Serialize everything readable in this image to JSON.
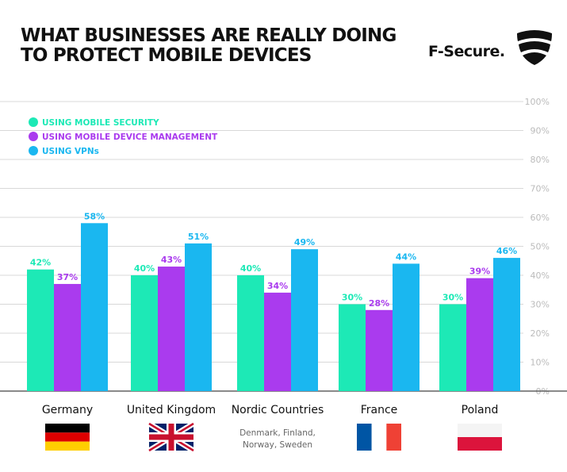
{
  "header": {
    "title_line1": "WHAT BUSINESSES ARE REALLY DOING",
    "title_line2": "TO PROTECT MOBILE DEVICES",
    "logo_text": "F-Secure."
  },
  "colors": {
    "mobile_security": "#1de9b6",
    "mdm": "#aa3bee",
    "vpn": "#1ab7f0",
    "grid": "#d8d8d8",
    "tick": "#bbbbbb",
    "sublabel": "#666666"
  },
  "chart_data": {
    "type": "bar",
    "categories": [
      "Germany",
      "United Kingdom",
      "Nordic Countries",
      "France",
      "Poland"
    ],
    "category_sublabels": [
      "",
      "",
      "Denmark, Finland, Norway, Sweden",
      "",
      ""
    ],
    "series": [
      {
        "name": "USING MOBILE SECURITY",
        "values": [
          42,
          40,
          40,
          30,
          30
        ]
      },
      {
        "name": "USING MOBILE DEVICE MANAGEMENT",
        "values": [
          37,
          43,
          34,
          28,
          39
        ]
      },
      {
        "name": "USING VPNs",
        "values": [
          58,
          51,
          49,
          44,
          46
        ]
      }
    ],
    "data_labels": [
      [
        "42%",
        "40%",
        "40%",
        "30%",
        "30%"
      ],
      [
        "37%",
        "43%",
        "34%",
        "28%",
        "39%"
      ],
      [
        "58%",
        "51%",
        "49%",
        "44%",
        "46%"
      ]
    ],
    "y_ticks": [
      "0%",
      "10%",
      "20%",
      "30%",
      "40%",
      "50%",
      "60%",
      "70%",
      "80%",
      "90%",
      "100%"
    ],
    "ylim": [
      0,
      100
    ],
    "y_axis_position": "right",
    "grid": true,
    "legend_position": "top-left",
    "flags": [
      "germany",
      "united-kingdom",
      "",
      "france",
      "poland"
    ]
  }
}
